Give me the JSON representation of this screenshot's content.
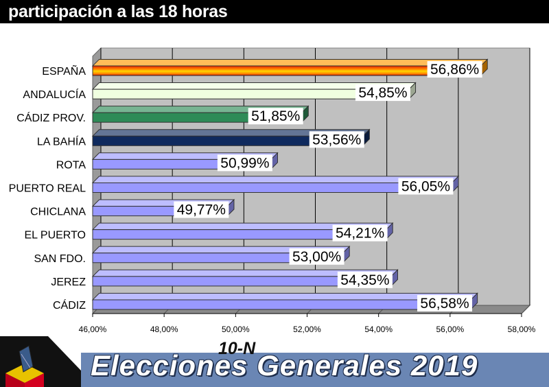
{
  "header": {
    "title": "participación a las 18 horas"
  },
  "footer": {
    "subtitle": "10-N",
    "title": "Elecciones Generales 2019"
  },
  "colors": {
    "espana": "#ff9900",
    "andalucia": "#f0ffe0",
    "cadiz_prov": "#2e8b57",
    "la_bahia": "#0f2a5e",
    "municipios": "#9999ff",
    "footer_band": "#6a86b4"
  },
  "chart_data": {
    "type": "bar",
    "orientation": "horizontal",
    "title": "participación a las 18 horas",
    "categories": [
      "ESPAÑA",
      "ANDALUCÍA",
      "CÁDIZ PROV.",
      "LA BAHÍA",
      "ROTA",
      "PUERTO REAL",
      "CHICLANA",
      "EL PUERTO",
      "SAN FDO.",
      "JEREZ",
      "CÁDIZ"
    ],
    "values": [
      56.86,
      54.85,
      51.85,
      53.56,
      50.99,
      56.05,
      49.77,
      54.21,
      53.0,
      54.35,
      56.58
    ],
    "data_labels": [
      "56,86%",
      "54,85%",
      "51,85%",
      "53,56%",
      "50,99%",
      "56,05%",
      "49,77%",
      "54,21%",
      "53,00%",
      "54,35%",
      "56,58%"
    ],
    "bar_colors": [
      "#ff9900",
      "#f0ffe0",
      "#2e8b57",
      "#0f2a5e",
      "#9999ff",
      "#9999ff",
      "#9999ff",
      "#9999ff",
      "#9999ff",
      "#9999ff",
      "#9999ff"
    ],
    "xlim": [
      46,
      58
    ],
    "xticks": [
      "46,00%",
      "48,00%",
      "50,00%",
      "52,00%",
      "54,00%",
      "56,00%",
      "58,00%"
    ],
    "grid": true,
    "style": "3d"
  }
}
